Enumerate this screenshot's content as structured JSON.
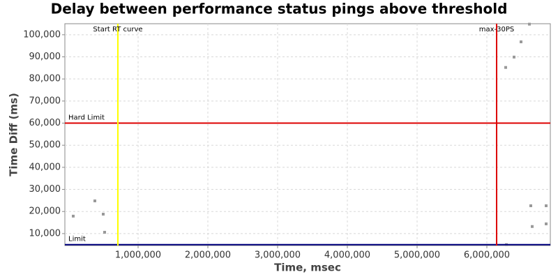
{
  "chart_data": {
    "type": "scatter",
    "title": "Delay between performance status pings above threshold",
    "x_label": "Time, msec",
    "y_label": "Time Diff (ms)",
    "color": "#999999",
    "grid": true,
    "x": [
      70000,
      380000,
      500000,
      520000,
      6270000,
      6390000,
      6490000,
      6610000,
      6630000,
      6650000,
      6850000,
      6850000,
      6280000
    ],
    "values": [
      17900,
      24800,
      18800,
      10600,
      85200,
      89900,
      96800,
      104800,
      22600,
      13200,
      22600,
      14400,
      5000
    ],
    "xlim": [
      -50000,
      6910000
    ],
    "ylim": [
      4600,
      105000
    ],
    "xticks": [
      {
        "value": 1000000,
        "label": "1,000,000"
      },
      {
        "value": 2000000,
        "label": "2,000,000"
      },
      {
        "value": 3000000,
        "label": "3,000,000"
      },
      {
        "value": 4000000,
        "label": "4,000,000"
      },
      {
        "value": 5000000,
        "label": "5,000,000"
      },
      {
        "value": 6000000,
        "label": "6,000,000"
      }
    ],
    "yticks": [
      {
        "value": 10000,
        "label": "10,000"
      },
      {
        "value": 20000,
        "label": "20,000"
      },
      {
        "value": 30000,
        "label": "30,000"
      },
      {
        "value": 40000,
        "label": "40,000"
      },
      {
        "value": 50000,
        "label": "50,000"
      },
      {
        "value": 60000,
        "label": "60,000"
      },
      {
        "value": 70000,
        "label": "70,000"
      },
      {
        "value": 80000,
        "label": "80,000"
      },
      {
        "value": 90000,
        "label": "90,000"
      },
      {
        "value": 100000,
        "label": "100,000"
      }
    ],
    "vlines": [
      {
        "label": "Start RT curve",
        "value": 710000,
        "color": "#ffff00"
      },
      {
        "label": "max-30PS",
        "value": 6140000,
        "color": "#dd0000"
      }
    ],
    "hlines": [
      {
        "label": "Hard Limit",
        "value": 60000,
        "color": "#dd0000"
      },
      {
        "label": "Limit",
        "value": 5000,
        "color": "#000080"
      }
    ]
  }
}
